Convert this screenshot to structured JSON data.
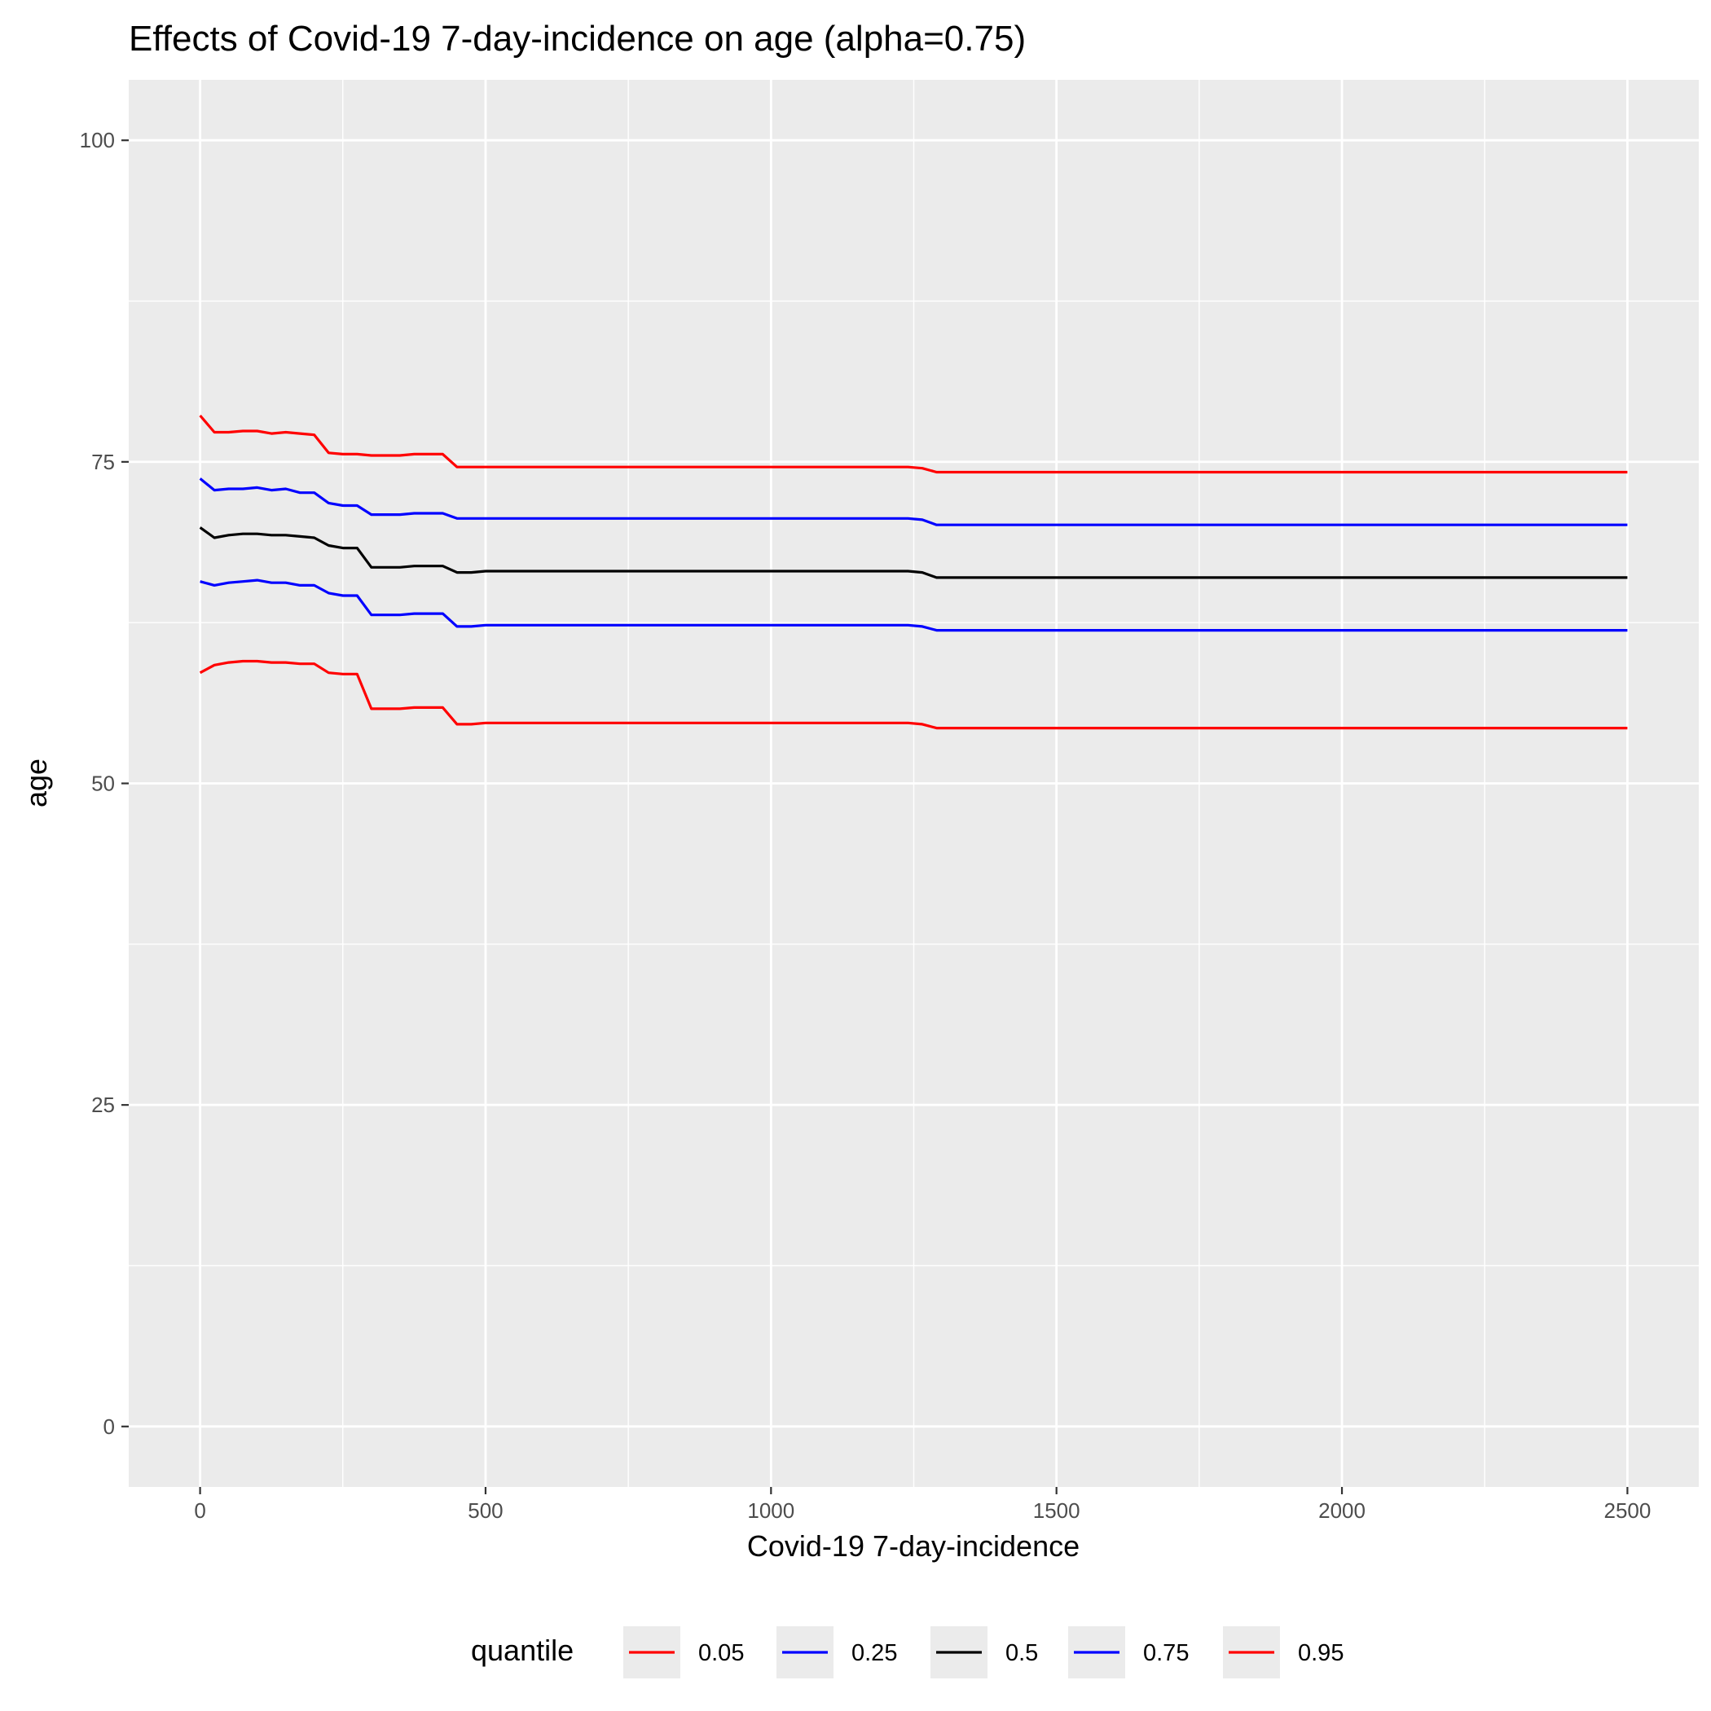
{
  "chart_data": {
    "type": "line",
    "title": "Effects of Covid-19 7-day-incidence on age (alpha=0.75)",
    "xlabel": "Covid-19 7-day-incidence",
    "ylabel": "age",
    "xlim": [
      -125,
      2625
    ],
    "ylim": [
      -4.7,
      104.7
    ],
    "x_ticks": [
      0,
      500,
      1000,
      1500,
      2000,
      2500
    ],
    "x_tick_labels": [
      "0",
      "500",
      "1000",
      "1500",
      "2000",
      "2500"
    ],
    "y_ticks": [
      0,
      25,
      50,
      75,
      100
    ],
    "y_tick_labels": [
      "0",
      "25",
      "50",
      "75",
      "100"
    ],
    "grid": true,
    "legend": {
      "title": "quantile",
      "position": "bottom"
    },
    "x": [
      0,
      25,
      50,
      75,
      100,
      125,
      150,
      175,
      200,
      225,
      250,
      275,
      300,
      325,
      350,
      375,
      400,
      425,
      450,
      475,
      500,
      750,
      1000,
      1240,
      1265,
      1290,
      1500,
      1690,
      2500
    ],
    "series": [
      {
        "name": "0.05",
        "color": "#ff0000",
        "values": [
          58.6,
          59.2,
          59.4,
          59.5,
          59.5,
          59.4,
          59.4,
          59.3,
          59.3,
          58.6,
          58.5,
          58.5,
          55.8,
          55.8,
          55.8,
          55.9,
          55.9,
          55.9,
          54.6,
          54.6,
          54.7,
          54.7,
          54.7,
          54.7,
          54.6,
          54.3,
          54.3,
          54.3,
          54.3
        ]
      },
      {
        "name": "0.25",
        "color": "#0000ff",
        "values": [
          65.7,
          65.4,
          65.6,
          65.7,
          65.8,
          65.6,
          65.6,
          65.4,
          65.4,
          64.8,
          64.6,
          64.6,
          63.1,
          63.1,
          63.1,
          63.2,
          63.2,
          63.2,
          62.2,
          62.2,
          62.3,
          62.3,
          62.3,
          62.3,
          62.2,
          61.9,
          61.9,
          61.9,
          61.9
        ]
      },
      {
        "name": "0.5",
        "color": "#000000",
        "values": [
          69.9,
          69.1,
          69.3,
          69.4,
          69.4,
          69.3,
          69.3,
          69.2,
          69.1,
          68.5,
          68.3,
          68.3,
          66.8,
          66.8,
          66.8,
          66.9,
          66.9,
          66.9,
          66.4,
          66.4,
          66.5,
          66.5,
          66.5,
          66.5,
          66.4,
          66.0,
          66.0,
          66.0,
          66.0
        ]
      },
      {
        "name": "0.75",
        "color": "#0000ff",
        "values": [
          73.7,
          72.8,
          72.9,
          72.9,
          73.0,
          72.8,
          72.9,
          72.6,
          72.6,
          71.8,
          71.6,
          71.6,
          70.9,
          70.9,
          70.9,
          71.0,
          71.0,
          71.0,
          70.6,
          70.6,
          70.6,
          70.6,
          70.6,
          70.6,
          70.5,
          70.1,
          70.1,
          70.1,
          70.1
        ]
      },
      {
        "name": "0.95",
        "color": "#ff0000",
        "values": [
          78.6,
          77.3,
          77.3,
          77.4,
          77.4,
          77.2,
          77.3,
          77.2,
          77.1,
          75.7,
          75.6,
          75.6,
          75.5,
          75.5,
          75.5,
          75.6,
          75.6,
          75.6,
          74.6,
          74.6,
          74.6,
          74.6,
          74.6,
          74.6,
          74.5,
          74.2,
          74.2,
          74.2,
          74.2
        ]
      }
    ]
  }
}
